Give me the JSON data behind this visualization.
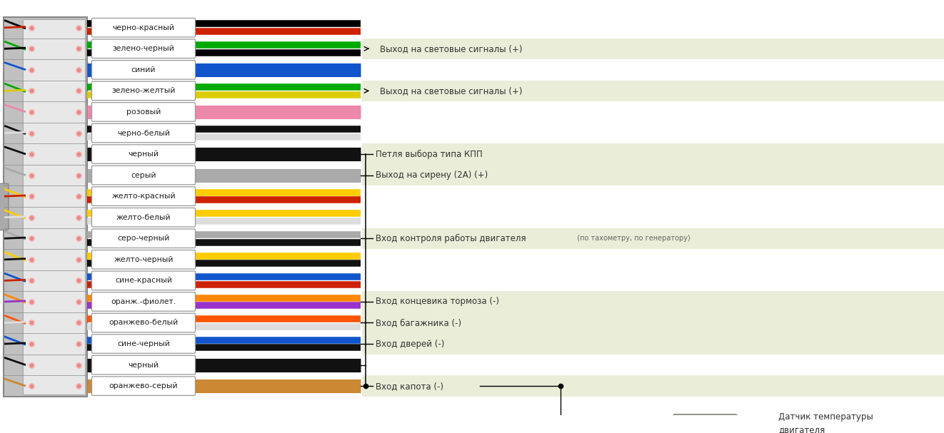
{
  "bg_color": "#ffffff",
  "wires": [
    {
      "label": "черно-красный",
      "colors": [
        "#000000",
        "#cc2200"
      ],
      "wire_colors": [
        "#000000",
        "#cc2200"
      ]
    },
    {
      "label": "зелено-черный",
      "colors": [
        "#00aa00",
        "#000000"
      ],
      "wire_colors": [
        "#00aa00",
        "#000000"
      ]
    },
    {
      "label": "синий",
      "colors": [
        "#1155cc"
      ],
      "wire_colors": [
        "#1155cc"
      ]
    },
    {
      "label": "зелено-желтый",
      "colors": [
        "#00aa00",
        "#ddcc00"
      ],
      "wire_colors": [
        "#00aa00",
        "#ddcc00"
      ]
    },
    {
      "label": "розовый",
      "colors": [
        "#ee88aa"
      ],
      "wire_colors": [
        "#ee88aa"
      ]
    },
    {
      "label": "черно-белый",
      "colors": [
        "#111111",
        "#dddddd"
      ],
      "wire_colors": [
        "#111111",
        "#dddddd"
      ]
    },
    {
      "label": "черный",
      "colors": [
        "#111111"
      ],
      "wire_colors": [
        "#111111"
      ]
    },
    {
      "label": "серый",
      "colors": [
        "#aaaaaa"
      ],
      "wire_colors": [
        "#aaaaaa"
      ]
    },
    {
      "label": "желто-красный",
      "colors": [
        "#ffcc00",
        "#cc2200"
      ],
      "wire_colors": [
        "#ffcc00",
        "#cc2200"
      ]
    },
    {
      "label": "желто-белый",
      "colors": [
        "#ffcc00",
        "#dddddd"
      ],
      "wire_colors": [
        "#ffcc00",
        "#dddddd"
      ]
    },
    {
      "label": "серо-черный",
      "colors": [
        "#aaaaaa",
        "#111111"
      ],
      "wire_colors": [
        "#aaaaaa",
        "#111111"
      ]
    },
    {
      "label": "желто-черный",
      "colors": [
        "#ffcc00",
        "#111111"
      ],
      "wire_colors": [
        "#ffcc00",
        "#111111"
      ]
    },
    {
      "label": "сине-красный",
      "colors": [
        "#1155cc",
        "#cc2200"
      ],
      "wire_colors": [
        "#1155cc",
        "#cc2200"
      ]
    },
    {
      "label": "оранж.-фиолет.",
      "colors": [
        "#ff8800",
        "#9933cc"
      ],
      "wire_colors": [
        "#ff8800",
        "#9933cc"
      ]
    },
    {
      "label": "оранжево-белый",
      "colors": [
        "#ff5500",
        "#dddddd"
      ],
      "wire_colors": [
        "#ff5500",
        "#dddddd"
      ]
    },
    {
      "label": "сине-черный",
      "colors": [
        "#1155cc",
        "#111111"
      ],
      "wire_colors": [
        "#1155cc",
        "#111111"
      ]
    },
    {
      "label": "черный",
      "colors": [
        "#111111"
      ],
      "wire_colors": [
        "#111111"
      ]
    },
    {
      "label": "оранжево-серый",
      "colors": [
        "#cc8833"
      ],
      "wire_colors": [
        "#cc8833"
      ]
    }
  ],
  "highlight_rows": [
    {
      "start": 1,
      "end": 1,
      "color": "#eaedd8"
    },
    {
      "start": 3,
      "end": 3,
      "color": "#eaedd8"
    },
    {
      "start": 6,
      "end": 7,
      "color": "#eaedd8"
    },
    {
      "start": 10,
      "end": 10,
      "color": "#eaedd8"
    },
    {
      "start": 13,
      "end": 15,
      "color": "#eaedd8"
    },
    {
      "start": 17,
      "end": 17,
      "color": "#eaedd8"
    }
  ],
  "ann_row1": "Выход на световые сигналы (+)",
  "ann_row3": "Выход на световые сигналы (+)",
  "ann_row6": "Петля выбора типа КПП",
  "ann_row7": "Выход на сирену (2А) (+)",
  "ann_row10": "Вход контроля работы двигателя",
  "ann_row10b": "(по тахометру, по генератору)",
  "ann_row13": "Вход концевика тормоза (-)",
  "ann_row14": "Вход багажника (-)",
  "ann_row15": "Вход дверей (-)",
  "ann_row17": "Вход капота (-)",
  "sensor_label": "Датчик температуры\nдвигателя"
}
